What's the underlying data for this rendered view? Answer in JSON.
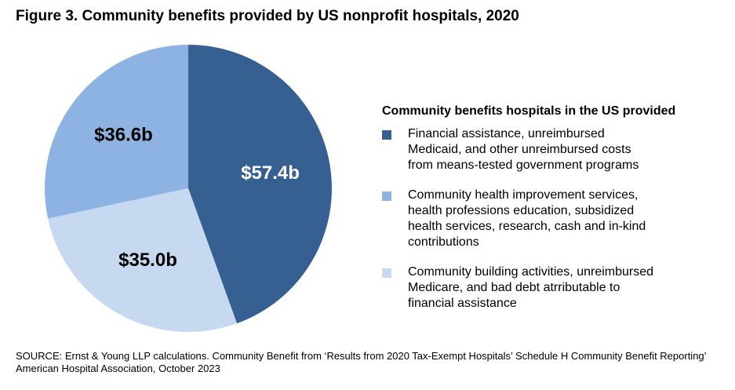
{
  "chart_data": {
    "type": "pie",
    "title": "Figure 3. Community benefits provided by US nonprofit hospitals, 2020",
    "legend_title": "Community benefits hospitals in the US provided",
    "categories": [
      "Financial assistance, unreimbursed Medicaid, and other unreimbursed costs from means-tested government programs",
      "Community health improvement services, health professions education, subsidized health services, research, cash and in-kind contributions",
      "Community building activities, unreimbursed Medicare, and bad debt atrributable to financial assistance"
    ],
    "values": [
      57.4,
      36.6,
      35.0
    ],
    "value_labels": [
      "$57.4b",
      "$36.6b",
      "$35.0b"
    ],
    "colors": [
      "#376092",
      "#8db3e2",
      "#c6d9f0"
    ],
    "label_colors": [
      "#ffffff",
      "#000000",
      "#000000"
    ],
    "source": "SOURCE: Ernst & Young LLP calculations. Community Benefit from ‘Results from 2020 Tax-Exempt Hospitals’ Schedule H Community Benefit Reporting’ American Hospital Association, October 2023"
  }
}
